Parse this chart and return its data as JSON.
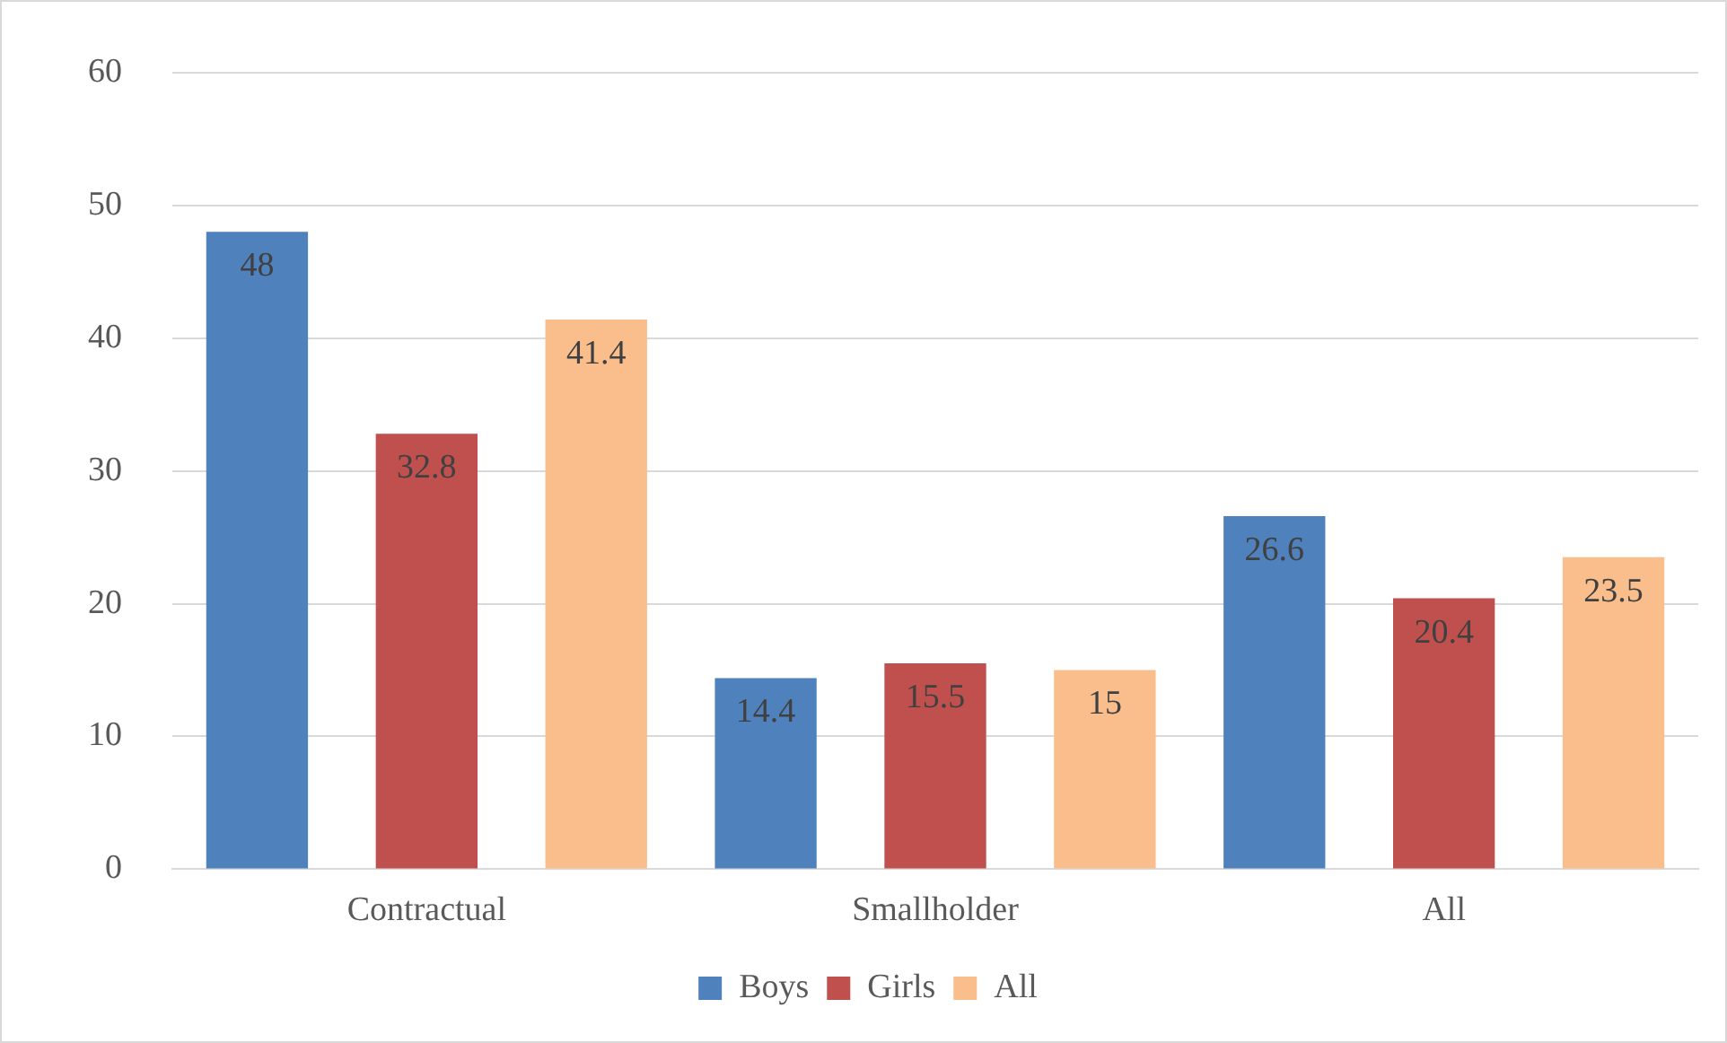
{
  "chart_data": {
    "type": "bar",
    "categories": [
      "Contractual",
      "Smallholder",
      "All"
    ],
    "series": [
      {
        "name": "Boys",
        "color": "#4f81bd",
        "values": [
          48,
          14.4,
          26.6
        ]
      },
      {
        "name": "Girls",
        "color": "#c0504d",
        "values": [
          32.8,
          15.5,
          20.4
        ]
      },
      {
        "name": "All",
        "color": "#f9be8b",
        "values": [
          41.4,
          15,
          23.5
        ]
      }
    ],
    "ylim": [
      0,
      60
    ],
    "yticks": [
      0,
      10,
      20,
      30,
      40,
      50,
      60
    ],
    "grid": "y",
    "legend": "bottom",
    "data_labels": true
  }
}
